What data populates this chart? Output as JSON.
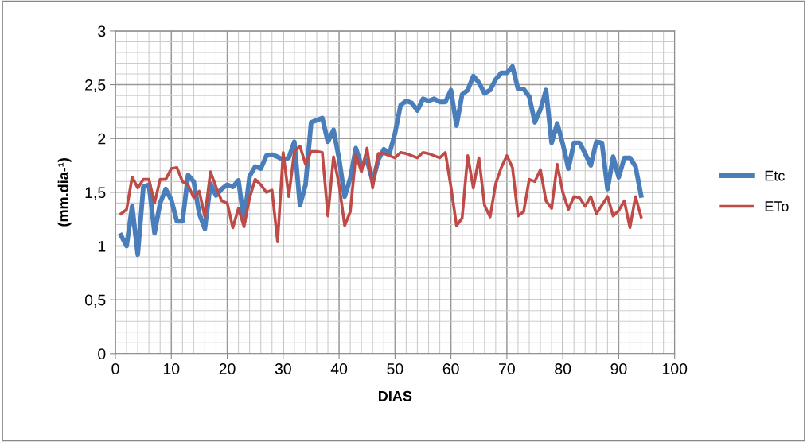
{
  "chart_data": {
    "type": "line",
    "xlabel": "DIAS",
    "ylabel": "(mm.dia-¹)",
    "x": [
      1,
      2,
      3,
      4,
      5,
      6,
      7,
      8,
      9,
      10,
      11,
      12,
      13,
      14,
      15,
      16,
      17,
      18,
      19,
      20,
      21,
      22,
      23,
      24,
      25,
      26,
      27,
      28,
      29,
      30,
      31,
      32,
      33,
      34,
      35,
      36,
      37,
      38,
      39,
      40,
      41,
      42,
      43,
      44,
      45,
      46,
      47,
      48,
      49,
      50,
      51,
      52,
      53,
      54,
      55,
      56,
      57,
      58,
      59,
      60,
      61,
      62,
      63,
      64,
      65,
      66,
      67,
      68,
      69,
      70,
      71,
      72,
      73,
      74,
      75,
      76,
      77,
      78,
      79,
      80,
      81,
      82,
      83,
      84,
      85,
      86,
      87,
      88,
      89,
      90,
      91,
      92,
      93,
      94
    ],
    "series": [
      {
        "name": "Etc",
        "color": "#4a7ebb",
        "values": [
          1.1,
          1.0,
          1.37,
          0.92,
          1.55,
          1.57,
          1.12,
          1.4,
          1.53,
          1.43,
          1.23,
          1.23,
          1.66,
          1.6,
          1.3,
          1.16,
          1.58,
          1.47,
          1.53,
          1.57,
          1.55,
          1.61,
          1.23,
          1.65,
          1.74,
          1.72,
          1.84,
          1.85,
          1.83,
          1.8,
          1.82,
          1.97,
          1.38,
          1.57,
          2.15,
          2.17,
          2.19,
          1.97,
          2.08,
          1.81,
          1.46,
          1.63,
          1.91,
          1.75,
          1.8,
          1.6,
          1.8,
          1.9,
          1.86,
          2.05,
          2.31,
          2.35,
          2.33,
          2.26,
          2.37,
          2.35,
          2.37,
          2.34,
          2.34,
          2.45,
          2.12,
          2.41,
          2.45,
          2.58,
          2.52,
          2.42,
          2.45,
          2.55,
          2.61,
          2.61,
          2.67,
          2.46,
          2.46,
          2.39,
          2.15,
          2.27,
          2.45,
          1.96,
          2.14,
          1.95,
          1.72,
          1.96,
          1.96,
          1.86,
          1.75,
          1.97,
          1.96,
          1.53,
          1.83,
          1.64,
          1.82,
          1.82,
          1.74,
          1.47
        ]
      },
      {
        "name": "ETo",
        "color": "#be4b48",
        "values": [
          1.3,
          1.34,
          1.64,
          1.54,
          1.62,
          1.62,
          1.4,
          1.62,
          1.62,
          1.72,
          1.73,
          1.6,
          1.57,
          1.45,
          1.51,
          1.27,
          1.69,
          1.55,
          1.42,
          1.4,
          1.17,
          1.35,
          1.18,
          1.45,
          1.62,
          1.57,
          1.5,
          1.52,
          1.04,
          1.87,
          1.46,
          1.88,
          1.93,
          1.76,
          1.88,
          1.88,
          1.87,
          1.28,
          1.83,
          1.57,
          1.19,
          1.32,
          1.85,
          1.69,
          1.91,
          1.54,
          1.86,
          1.86,
          1.84,
          1.82,
          1.87,
          1.86,
          1.84,
          1.82,
          1.87,
          1.86,
          1.84,
          1.82,
          1.87,
          1.55,
          1.19,
          1.26,
          1.84,
          1.54,
          1.82,
          1.38,
          1.27,
          1.58,
          1.73,
          1.84,
          1.73,
          1.28,
          1.32,
          1.62,
          1.6,
          1.71,
          1.42,
          1.35,
          1.76,
          1.5,
          1.34,
          1.46,
          1.45,
          1.37,
          1.46,
          1.3,
          1.38,
          1.46,
          1.28,
          1.33,
          1.42,
          1.17,
          1.46,
          1.27
        ]
      }
    ],
    "xlim": [
      0,
      100
    ],
    "xticks": [
      0,
      10,
      20,
      30,
      40,
      50,
      60,
      70,
      80,
      90,
      100
    ],
    "ylim": [
      0,
      3
    ],
    "yticks": [
      0,
      {
        "value": 0.5,
        "label": "0,5"
      },
      1,
      {
        "value": 1.5,
        "label": "1,5"
      },
      2,
      {
        "value": 2.5,
        "label": "2,5"
      },
      3
    ],
    "grid": true,
    "legend": "right",
    "marker": "none",
    "line_style": "solid"
  }
}
